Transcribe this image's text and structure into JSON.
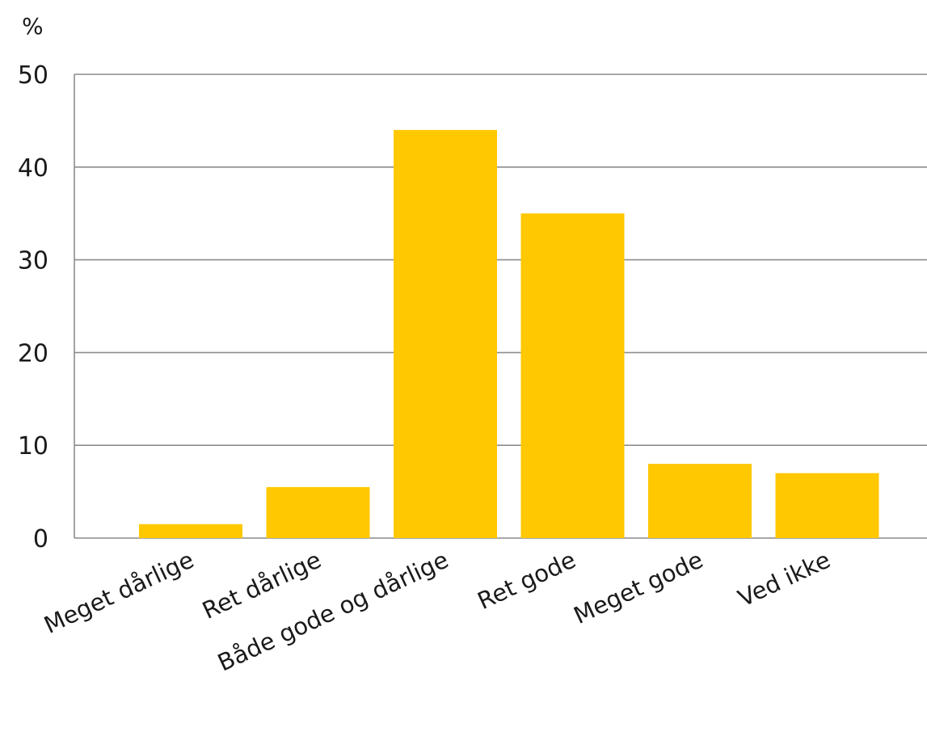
{
  "chart_data": {
    "type": "bar",
    "title": "",
    "xlabel": "",
    "ylabel": "%",
    "ylim": [
      0,
      50
    ],
    "yticks": [
      0,
      10,
      20,
      30,
      40,
      50
    ],
    "grid": true,
    "bar_color": "#FFC800",
    "categories": [
      "Meget dårlige",
      "Ret dårlige",
      "Både gode og dårlige",
      "Ret gode",
      "Meget gode",
      "Ved ikke"
    ],
    "values": [
      1.5,
      5.5,
      44,
      35,
      8,
      7
    ]
  }
}
